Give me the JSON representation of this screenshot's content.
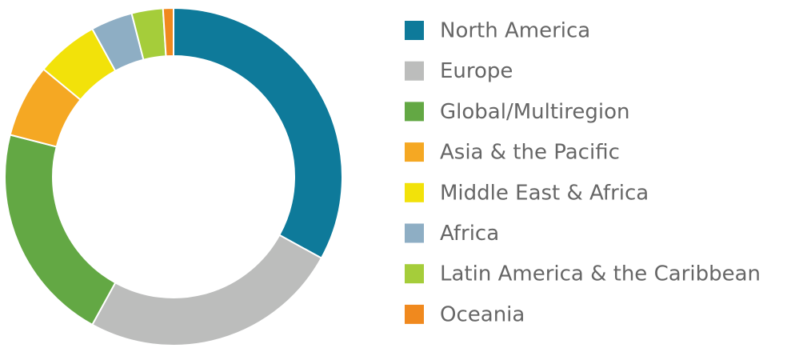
{
  "chart_data": {
    "type": "donut",
    "categories": [
      "North America",
      "Europe",
      "Global/Multiregion",
      "Asia & the Pacific",
      "Middle East & Africa",
      "Africa",
      "Latin America & the Caribbean",
      "Oceania"
    ],
    "values": [
      33,
      25,
      21,
      7,
      6,
      4,
      3,
      1
    ],
    "colors": [
      "#0e7a9a",
      "#bcbdbc",
      "#63a844",
      "#f5a823",
      "#f2e20a",
      "#8eaec4",
      "#a5cd3a",
      "#f0891e"
    ],
    "legend": "right"
  }
}
